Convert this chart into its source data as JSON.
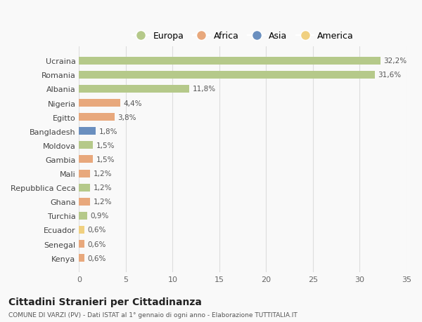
{
  "categories": [
    "Kenya",
    "Senegal",
    "Ecuador",
    "Turchia",
    "Ghana",
    "Repubblica Ceca",
    "Mali",
    "Gambia",
    "Moldova",
    "Bangladesh",
    "Egitto",
    "Nigeria",
    "Albania",
    "Romania",
    "Ucraina"
  ],
  "values": [
    0.6,
    0.6,
    0.6,
    0.9,
    1.2,
    1.2,
    1.2,
    1.5,
    1.5,
    1.8,
    3.8,
    4.4,
    11.8,
    31.6,
    32.2
  ],
  "labels": [
    "0,6%",
    "0,6%",
    "0,6%",
    "0,9%",
    "1,2%",
    "1,2%",
    "1,2%",
    "1,5%",
    "1,5%",
    "1,8%",
    "3,8%",
    "4,4%",
    "11,8%",
    "31,6%",
    "32,2%"
  ],
  "colors": [
    "#e8a87c",
    "#e8a87c",
    "#f0d080",
    "#b5c98a",
    "#e8a87c",
    "#b5c98a",
    "#e8a87c",
    "#e8a87c",
    "#b5c98a",
    "#6a8fbf",
    "#e8a87c",
    "#e8a87c",
    "#b5c98a",
    "#b5c98a",
    "#b5c98a"
  ],
  "legend_labels": [
    "Europa",
    "Africa",
    "Asia",
    "America"
  ],
  "legend_colors": [
    "#b5c98a",
    "#e8a87c",
    "#6a8fbf",
    "#f0d080"
  ],
  "title": "Cittadini Stranieri per Cittadinanza",
  "subtitle": "COMUNE DI VARZI (PV) - Dati ISTAT al 1° gennaio di ogni anno - Elaborazione TUTTITALIA.IT",
  "xlim": [
    0,
    35
  ],
  "xticks": [
    0,
    5,
    10,
    15,
    20,
    25,
    30,
    35
  ],
  "background_color": "#f9f9f9",
  "bar_height": 0.55,
  "grid_color": "#dddddd"
}
